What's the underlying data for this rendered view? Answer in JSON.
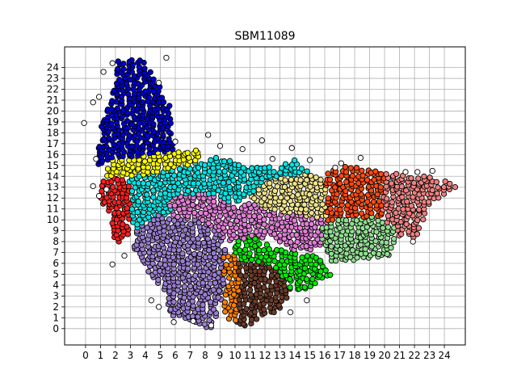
{
  "chart_data": {
    "type": "scatter",
    "title": "SBM11089",
    "xlabel": "",
    "ylabel": "",
    "xlim": [
      -1.4,
      25.4
    ],
    "ylim": [
      -1.5,
      25.9
    ],
    "x_ticks": [
      0,
      1,
      2,
      3,
      4,
      5,
      6,
      7,
      8,
      9,
      10,
      11,
      12,
      13,
      14,
      15,
      16,
      17,
      18,
      19,
      20,
      21,
      22,
      23,
      24
    ],
    "y_ticks": [
      0,
      1,
      2,
      3,
      4,
      5,
      6,
      7,
      8,
      9,
      10,
      11,
      12,
      13,
      14,
      15,
      16,
      17,
      18,
      19,
      20,
      21,
      22,
      23,
      24
    ],
    "grid": true,
    "legend": "none",
    "marker": "circle, black edge",
    "clusters": [
      {
        "color": "#0000cc",
        "region": [
          [
            0.6,
            15.0
          ],
          [
            1.0,
            18.5
          ],
          [
            1.8,
            21.5
          ],
          [
            2.0,
            24.6
          ],
          [
            3.8,
            24.8
          ],
          [
            5.6,
            21.0
          ],
          [
            5.9,
            16.2
          ],
          [
            5.0,
            15.4
          ],
          [
            3.5,
            15.8
          ],
          [
            1.5,
            15.2
          ]
        ]
      },
      {
        "color": "#ffff00",
        "region": [
          [
            1.2,
            14.0
          ],
          [
            1.8,
            15.5
          ],
          [
            3.2,
            15.8
          ],
          [
            5.0,
            16.2
          ],
          [
            7.8,
            16.5
          ],
          [
            7.5,
            15.2
          ],
          [
            5.5,
            14.2
          ],
          [
            3.0,
            14.0
          ]
        ]
      },
      {
        "color": "#00e6e6",
        "region": [
          [
            2.8,
            13.8
          ],
          [
            6.0,
            14.6
          ],
          [
            8.5,
            15.8
          ],
          [
            10.5,
            15.2
          ],
          [
            12.5,
            14.8
          ],
          [
            14.0,
            15.5
          ],
          [
            15.2,
            14.0
          ],
          [
            13.5,
            12.5
          ],
          [
            11.0,
            12.0
          ],
          [
            9.0,
            11.2
          ],
          [
            7.0,
            11.5
          ],
          [
            5.5,
            10.5
          ],
          [
            4.5,
            9.3
          ],
          [
            3.2,
            9.0
          ]
        ]
      },
      {
        "color": "#ff2020",
        "region": [
          [
            1.0,
            13.5
          ],
          [
            2.2,
            14.2
          ],
          [
            3.0,
            13.2
          ],
          [
            3.0,
            11.0
          ],
          [
            2.8,
            8.0
          ],
          [
            2.0,
            8.0
          ],
          [
            1.5,
            10.5
          ],
          [
            1.0,
            12.0
          ]
        ]
      },
      {
        "color": "#e07fd6",
        "region": [
          [
            5.5,
            12.0
          ],
          [
            8.0,
            12.5
          ],
          [
            10.0,
            11.3
          ],
          [
            12.5,
            11.8
          ],
          [
            15.0,
            11.0
          ],
          [
            16.2,
            9.8
          ],
          [
            16.0,
            7.5
          ],
          [
            14.0,
            7.0
          ],
          [
            12.5,
            8.5
          ],
          [
            10.0,
            8.0
          ],
          [
            8.0,
            8.5
          ],
          [
            6.0,
            9.5
          ]
        ]
      },
      {
        "color": "#f0e38a",
        "region": [
          [
            11.0,
            12.2
          ],
          [
            12.5,
            13.8
          ],
          [
            14.5,
            14.2
          ],
          [
            16.0,
            14.0
          ],
          [
            16.2,
            12.0
          ],
          [
            16.2,
            10.0
          ],
          [
            14.0,
            10.5
          ],
          [
            12.0,
            11.0
          ]
        ]
      },
      {
        "color": "#ff4a10",
        "region": [
          [
            16.0,
            14.3
          ],
          [
            17.5,
            15.0
          ],
          [
            19.5,
            14.5
          ],
          [
            20.5,
            13.8
          ],
          [
            20.5,
            10.5
          ],
          [
            18.5,
            9.8
          ],
          [
            16.2,
            9.8
          ]
        ]
      },
      {
        "color": "#f08080",
        "region": [
          [
            20.0,
            14.3
          ],
          [
            22.0,
            14.2
          ],
          [
            24.0,
            13.6
          ],
          [
            25.0,
            13.2
          ],
          [
            23.0,
            11.5
          ],
          [
            22.0,
            8.0
          ],
          [
            20.5,
            8.8
          ],
          [
            19.8,
            10.5
          ]
        ]
      },
      {
        "color": "#9a7ecf",
        "region": [
          [
            3.5,
            9.5
          ],
          [
            5.0,
            10.5
          ],
          [
            7.5,
            10.0
          ],
          [
            9.0,
            9.0
          ],
          [
            9.5,
            6.5
          ],
          [
            9.2,
            3.0
          ],
          [
            8.5,
            0.0
          ],
          [
            7.0,
            0.5
          ],
          [
            5.8,
            1.0
          ],
          [
            5.2,
            3.5
          ],
          [
            4.0,
            5.5
          ],
          [
            3.2,
            7.2
          ]
        ]
      },
      {
        "color": "#00ee00",
        "region": [
          [
            9.8,
            7.8
          ],
          [
            11.0,
            8.5
          ],
          [
            12.5,
            7.5
          ],
          [
            14.0,
            7.0
          ],
          [
            15.5,
            6.8
          ],
          [
            16.5,
            5.0
          ],
          [
            15.0,
            3.8
          ],
          [
            13.5,
            3.2
          ],
          [
            12.0,
            4.5
          ],
          [
            11.5,
            6.0
          ],
          [
            10.0,
            6.5
          ]
        ]
      },
      {
        "color": "#90e090",
        "region": [
          [
            15.8,
            9.5
          ],
          [
            17.5,
            10.2
          ],
          [
            19.5,
            10.3
          ],
          [
            20.8,
            9.2
          ],
          [
            20.5,
            6.8
          ],
          [
            18.5,
            6.3
          ],
          [
            16.5,
            6.0
          ],
          [
            15.8,
            7.5
          ]
        ]
      },
      {
        "color": "#ff8000",
        "region": [
          [
            9.2,
            6.8
          ],
          [
            10.2,
            6.8
          ],
          [
            10.4,
            3.0
          ],
          [
            10.0,
            0.5
          ],
          [
            9.3,
            1.0
          ]
        ]
      },
      {
        "color": "#6b3c2b",
        "region": [
          [
            10.2,
            6.0
          ],
          [
            11.5,
            6.2
          ],
          [
            12.8,
            5.5
          ],
          [
            13.8,
            3.5
          ],
          [
            13.0,
            1.8
          ],
          [
            11.0,
            0.3
          ],
          [
            10.0,
            0.2
          ],
          [
            10.3,
            3.0
          ]
        ]
      }
    ],
    "unassigned_color": "#ffffff"
  }
}
